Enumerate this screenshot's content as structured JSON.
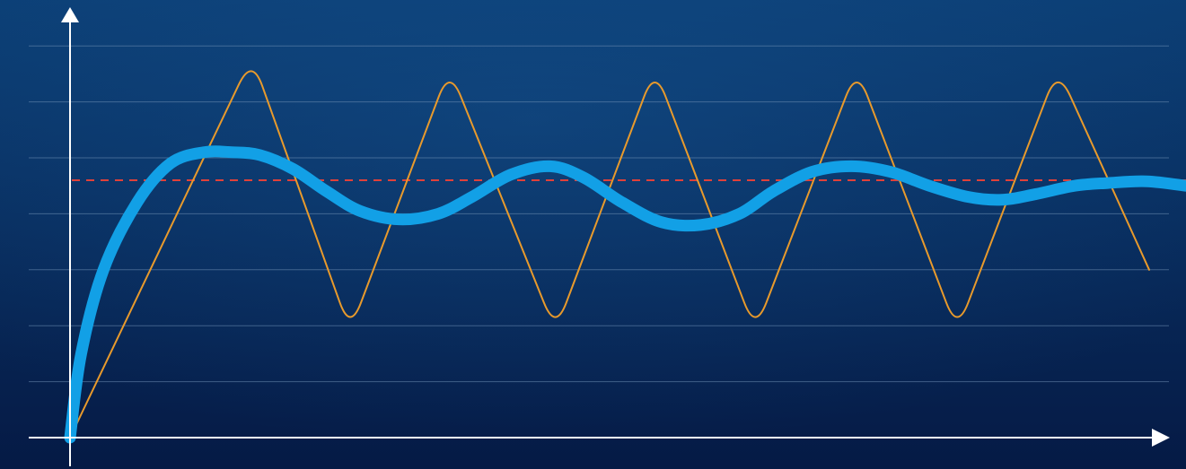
{
  "chart_data": {
    "type": "line",
    "title": "",
    "xlabel": "",
    "ylabel": "",
    "grid": true,
    "legend": "none",
    "xlim": [
      0,
      100
    ],
    "ylim": [
      0,
      7.5
    ],
    "setpoint": 4.6,
    "series": [
      {
        "style": "thin-oscillating",
        "color": "#e89a2c",
        "x": [
          0,
          16.3,
          25.1,
          34.0,
          43.5,
          52.4,
          61.4,
          70.5,
          79.5,
          88.5,
          96.7
        ],
        "y": [
          0,
          6.8,
          1.9,
          6.6,
          1.9,
          6.6,
          1.9,
          6.6,
          1.9,
          6.6,
          3.0
        ]
      },
      {
        "style": "thick-damped",
        "color": "#12a0e6",
        "x": [
          0,
          1,
          3,
          6,
          9,
          12,
          14.5,
          17,
          20,
          23,
          26,
          29.5,
          33,
          36,
          39.5,
          43,
          46,
          49.5,
          53,
          56.5,
          60,
          63,
          66.5,
          70,
          73.5,
          77,
          80.5,
          83.5,
          86.5,
          90,
          93,
          96.5,
          100
        ],
        "y": [
          0,
          1.5,
          3.0,
          4.2,
          4.9,
          5.1,
          5.1,
          5.05,
          4.8,
          4.4,
          4.05,
          3.9,
          4.0,
          4.3,
          4.7,
          4.85,
          4.65,
          4.2,
          3.85,
          3.8,
          4.0,
          4.4,
          4.75,
          4.85,
          4.75,
          4.5,
          4.3,
          4.25,
          4.35,
          4.5,
          4.55,
          4.58,
          4.5
        ]
      }
    ]
  },
  "colors": {
    "background_top": "#0b3d73",
    "background_bottom": "#051a45",
    "axis": "#ffffff",
    "gridline": "#6f8fb5",
    "setpoint_line": "#e0413a"
  }
}
